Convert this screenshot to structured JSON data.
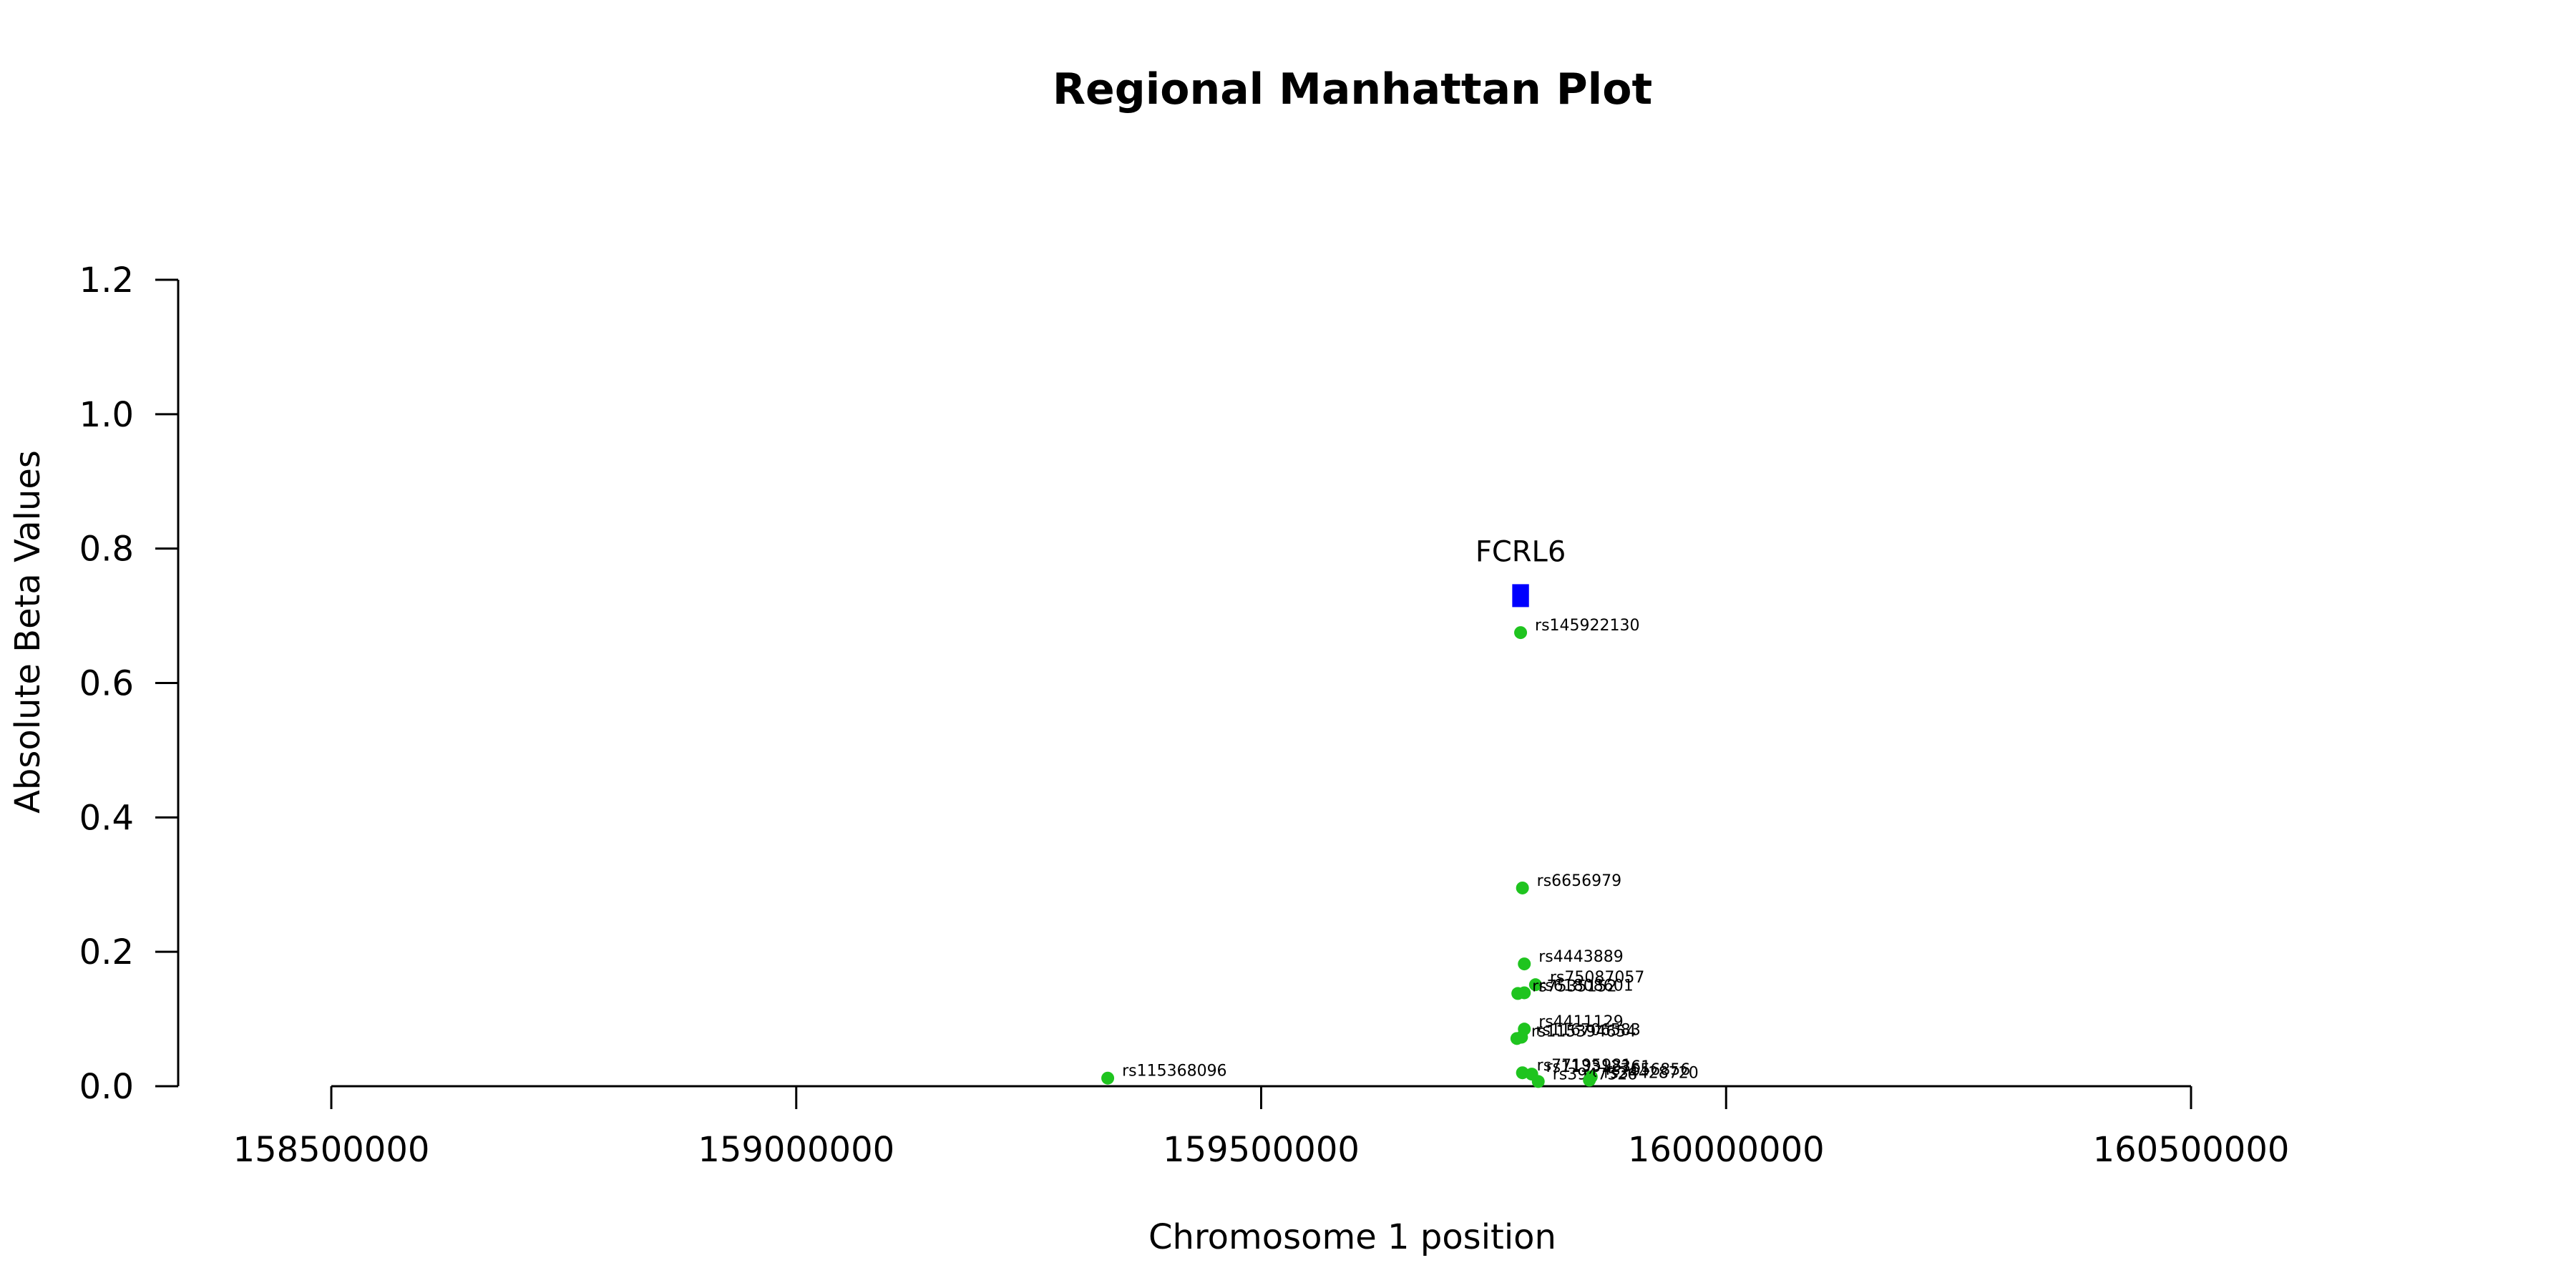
{
  "chart_data": {
    "type": "scatter",
    "title": "Regional Manhattan Plot",
    "xlabel": "Chromosome 1 position",
    "ylabel": "Absolute Beta Values",
    "xlim": [
      158300000,
      160600000
    ],
    "ylim": [
      0,
      1.2
    ],
    "x_ticks": [
      158500000,
      159000000,
      159500000,
      160000000,
      160500000
    ],
    "y_ticks": [
      0.0,
      0.2,
      0.4,
      0.6,
      0.8,
      1.0,
      1.2
    ],
    "x_tick_labels": [
      "158500000",
      "159000000",
      "159500000",
      "160000000",
      "160500000"
    ],
    "y_tick_labels": [
      "0.0",
      "0.2",
      "0.4",
      "0.6",
      "0.8",
      "1.0",
      "1.2"
    ],
    "colors": {
      "snp": "#1fc41f",
      "gene": "#0000ff"
    },
    "genes": [
      {
        "name": "FCRL6",
        "start": 159770000,
        "end": 159788000,
        "y": 0.73
      }
    ],
    "series": [
      {
        "points": [
          {
            "id": "rs145922130",
            "x": 159779000,
            "y": 0.675
          },
          {
            "id": "rs6656979",
            "x": 159781000,
            "y": 0.295
          },
          {
            "id": "rs4443889",
            "x": 159783000,
            "y": 0.182
          },
          {
            "id": "rs75087057",
            "x": 159795000,
            "y": 0.151
          },
          {
            "id": "rs7535152",
            "x": 159776000,
            "y": 0.138
          },
          {
            "id": "rs61808601",
            "x": 159783000,
            "y": 0.139
          },
          {
            "id": "rs4411129",
            "x": 159783000,
            "y": 0.085
          },
          {
            "id": "rs115394654",
            "x": 159775000,
            "y": 0.071
          },
          {
            "id": "rs116706583",
            "x": 159780000,
            "y": 0.073
          },
          {
            "id": "rs77195981",
            "x": 159781000,
            "y": 0.02
          },
          {
            "id": "rs113312361",
            "x": 159791000,
            "y": 0.018
          },
          {
            "id": "rs7656856",
            "x": 159855000,
            "y": 0.014
          },
          {
            "id": "rs3947526",
            "x": 159798000,
            "y": 0.007
          },
          {
            "id": "rs34428720",
            "x": 159853000,
            "y": 0.009
          },
          {
            "id": "rs115368096",
            "x": 159335000,
            "y": 0.012
          }
        ]
      }
    ]
  }
}
